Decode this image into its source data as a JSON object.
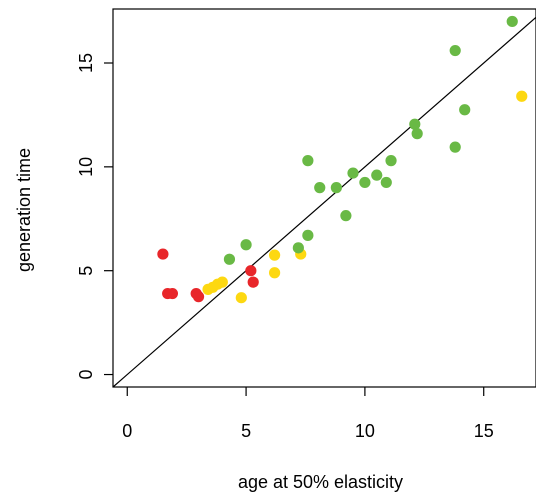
{
  "chart_data": {
    "type": "scatter",
    "title": "",
    "xlabel": "age at 50% elasticity",
    "ylabel": "generation time",
    "xlim": [
      -0.6,
      17.2
    ],
    "ylim": [
      -0.6,
      17.6
    ],
    "xticks": [
      0,
      5,
      10,
      15
    ],
    "yticks": [
      0,
      5,
      10,
      15
    ],
    "grid": false,
    "reference_line": "y = x",
    "colors": {
      "red": "#e8262a",
      "yellow": "#fdd811",
      "green": "#69b945",
      "axis": "#000000"
    },
    "series": [
      {
        "color": "red",
        "points": [
          [
            1.5,
            5.8
          ],
          [
            1.7,
            3.9
          ],
          [
            1.9,
            3.9
          ],
          [
            2.9,
            3.9
          ],
          [
            3.0,
            3.75
          ],
          [
            5.2,
            5.0
          ],
          [
            5.3,
            4.45
          ]
        ]
      },
      {
        "color": "yellow",
        "points": [
          [
            3.4,
            4.1
          ],
          [
            3.6,
            4.2
          ],
          [
            3.8,
            4.35
          ],
          [
            4.0,
            4.45
          ],
          [
            4.8,
            3.7
          ],
          [
            6.2,
            5.75
          ],
          [
            6.2,
            4.9
          ],
          [
            7.3,
            5.8
          ],
          [
            16.6,
            13.4
          ]
        ]
      },
      {
        "color": "green",
        "points": [
          [
            4.3,
            5.55
          ],
          [
            5.0,
            6.25
          ],
          [
            7.2,
            6.1
          ],
          [
            7.6,
            6.7
          ],
          [
            7.6,
            10.3
          ],
          [
            8.1,
            9.0
          ],
          [
            8.8,
            9.0
          ],
          [
            9.2,
            7.65
          ],
          [
            9.5,
            9.7
          ],
          [
            10.0,
            9.25
          ],
          [
            10.5,
            9.6
          ],
          [
            10.9,
            9.25
          ],
          [
            11.1,
            10.3
          ],
          [
            12.1,
            12.05
          ],
          [
            12.2,
            11.6
          ],
          [
            13.8,
            15.6
          ],
          [
            13.8,
            10.95
          ],
          [
            14.2,
            12.75
          ],
          [
            16.2,
            17.0
          ]
        ]
      }
    ]
  }
}
